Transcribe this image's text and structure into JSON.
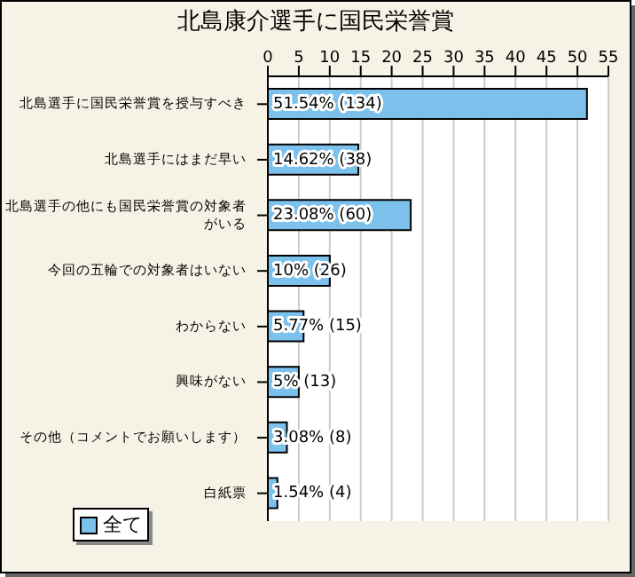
{
  "chart_data": {
    "type": "bar",
    "orientation": "horizontal",
    "title": "北島康介選手に国民栄誉賞",
    "categories": [
      "北島選手に国民栄誉賞を授与すべき",
      "北島選手にはまだ早い",
      "北島選手の他にも国民栄誉賞の対象者がいる",
      "今回の五輪での対象者はいない",
      "わからない",
      "興味がない",
      "その他（コメントでお願いします）",
      "白紙票"
    ],
    "series": [
      {
        "name": "全て",
        "color": "#7cc0ec",
        "values": [
          51.54,
          14.62,
          23.08,
          10,
          5.77,
          5,
          3.08,
          1.54
        ],
        "value_labels": [
          "51.54% (134)",
          "14.62% (38)",
          "23.08% (60)",
          "10% (26)",
          "5.77% (15)",
          "5% (13)",
          "3.08% (8)",
          "1.54% (4)"
        ]
      }
    ],
    "xlim": [
      0,
      55
    ],
    "xticks": [
      0,
      5,
      10,
      15,
      20,
      25,
      30,
      35,
      40,
      45,
      50,
      55
    ],
    "grid": "x",
    "legend": "bottom left"
  }
}
